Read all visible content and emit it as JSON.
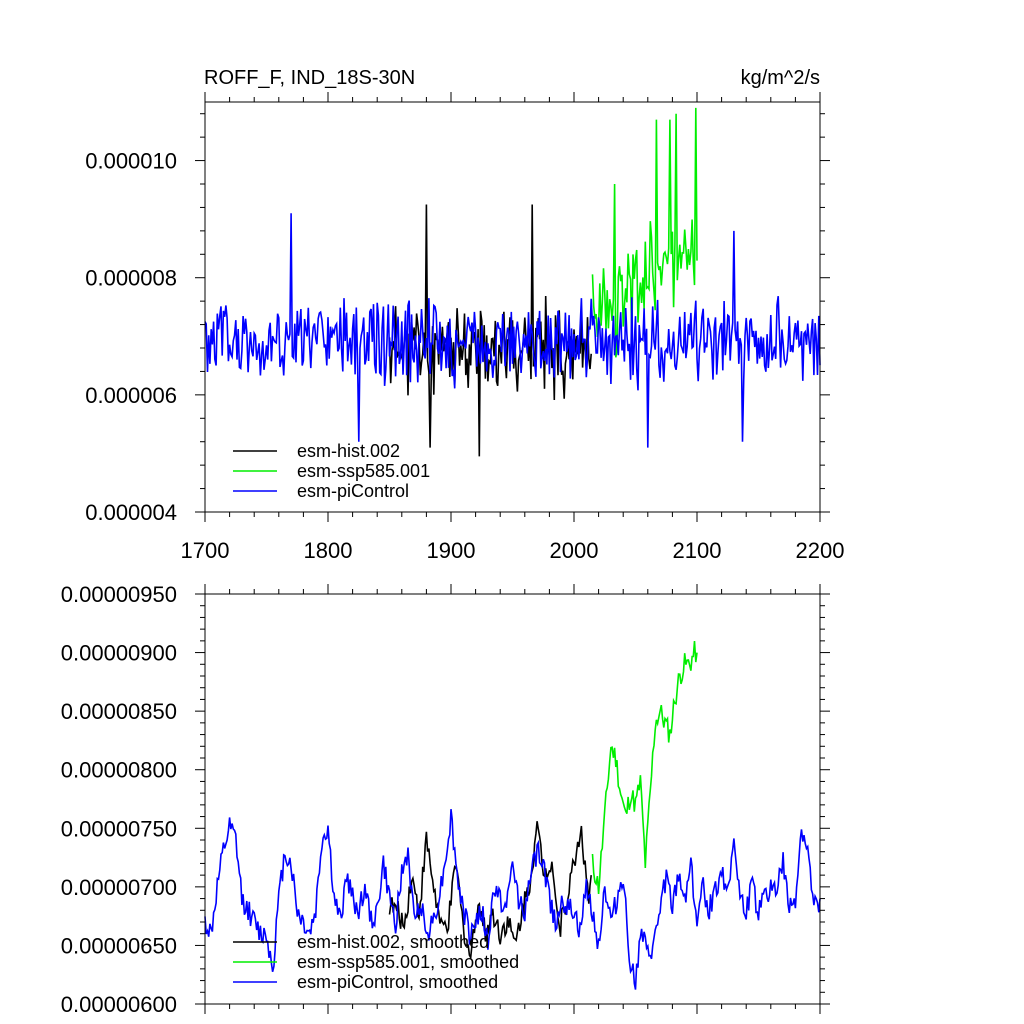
{
  "chart_data": [
    {
      "type": "line",
      "title_left": "ROFF_F, IND_18S-30N",
      "title_right": "kg/m^2/s",
      "xlim": [
        1700,
        2200
      ],
      "ylim": [
        4e-06,
        1.1e-05
      ],
      "x_ticks": [
        "1700",
        "1800",
        "1900",
        "2000",
        "2100",
        "2200"
      ],
      "y_ticks": [
        {
          "v": 4e-06,
          "label": "0.000004"
        },
        {
          "v": 6e-06,
          "label": "0.000006"
        },
        {
          "v": 8e-06,
          "label": "0.000008"
        },
        {
          "v": 1e-05,
          "label": "0.000010"
        }
      ],
      "legend_position": "bottom-left",
      "series": [
        {
          "name": "esm-hist.002",
          "color": "#000000",
          "x_start": 1850,
          "x_end": 2014,
          "mean": 6.8e-06,
          "amp": 9e-07,
          "seed": 11,
          "peaks": [
            [
              1880,
              9.25e-06
            ],
            [
              1966,
              9.25e-06
            ],
            [
              1923,
              4.95e-06
            ],
            [
              1883,
              5.1e-06
            ]
          ]
        },
        {
          "name": "esm-ssp585.001",
          "color": "#00ee00",
          "x_start": 2015,
          "x_end": 2100,
          "mean_start": 7.2e-06,
          "mean_end": 8.7e-06,
          "amp": 1.1e-06,
          "seed": 23,
          "peaks": [
            [
              2033,
              9.6e-06
            ],
            [
              2067,
              1.07e-05
            ],
            [
              2078,
              1.07e-05
            ],
            [
              2083,
              1.08e-05
            ],
            [
              2099,
              1.09e-05
            ]
          ]
        },
        {
          "name": "esm-piControl",
          "color": "#0000ff",
          "x_start": 1700,
          "x_end": 2200,
          "mean": 6.9e-06,
          "amp": 8.5e-07,
          "seed": 5,
          "peaks": [
            [
              1770,
              9.1e-06
            ],
            [
              1825,
              5.2e-06
            ],
            [
              2137,
              5.2e-06
            ],
            [
              2130,
              8.8e-06
            ],
            [
              2060,
              5.1e-06
            ]
          ]
        }
      ]
    },
    {
      "type": "line",
      "xlim": [
        1700,
        2200
      ],
      "ylim": [
        6e-06,
        9.5e-06
      ],
      "y_ticks": [
        {
          "v": 6e-06,
          "label": "0.00000600"
        },
        {
          "v": 6.5e-06,
          "label": "0.00000650"
        },
        {
          "v": 7e-06,
          "label": "0.00000700"
        },
        {
          "v": 7.5e-06,
          "label": "0.00000750"
        },
        {
          "v": 8e-06,
          "label": "0.00000800"
        },
        {
          "v": 8.5e-06,
          "label": "0.00000850"
        },
        {
          "v": 9e-06,
          "label": "0.00000900"
        },
        {
          "v": 9.5e-06,
          "label": "0.00000950"
        }
      ],
      "legend_position": "bottom-left",
      "series": [
        {
          "name": "esm-hist.002, smoothed",
          "color": "#000000",
          "x": [
            1850,
            1856,
            1862,
            1868,
            1874,
            1880,
            1886,
            1892,
            1898,
            1904,
            1910,
            1916,
            1922,
            1928,
            1934,
            1940,
            1946,
            1952,
            1958,
            1964,
            1970,
            1976,
            1982,
            1988,
            1994,
            2000,
            2006,
            2012,
            2014
          ],
          "y": [
            6.85e-06,
            6.8e-06,
            6.67e-06,
            7.1e-06,
            6.78e-06,
            7.4e-06,
            7e-06,
            6.63e-06,
            6.7e-06,
            7.2e-06,
            6.65e-06,
            6.4e-06,
            6.9e-06,
            6.6e-06,
            6.78e-06,
            6.6e-06,
            6.72e-06,
            6.5e-06,
            6.8e-06,
            7.05e-06,
            7.5e-06,
            7.1e-06,
            7.25e-06,
            6.62e-06,
            6.9e-06,
            7.2e-06,
            7.5e-06,
            6.85e-06,
            7.1e-06
          ]
        },
        {
          "name": "esm-ssp585.001, smoothed",
          "color": "#00ee00",
          "x": [
            2015,
            2020,
            2025,
            2030,
            2034,
            2038,
            2042,
            2046,
            2050,
            2054,
            2058,
            2062,
            2066,
            2070,
            2074,
            2078,
            2082,
            2086,
            2090,
            2094,
            2098,
            2100
          ],
          "y": [
            7.2e-06,
            7e-06,
            7.6e-06,
            8.2e-06,
            8.1e-06,
            7.8e-06,
            7.6e-06,
            7.8e-06,
            7.7e-06,
            7.9e-06,
            7.2e-06,
            7.8e-06,
            8.4e-06,
            8.5e-06,
            8.4e-06,
            8.3e-06,
            8.6e-06,
            8.8e-06,
            8.9e-06,
            8.9e-06,
            9e-06,
            9e-06
          ]
        },
        {
          "name": "esm-piControl, smoothed",
          "color": "#0000ff",
          "x": [
            1700,
            1705,
            1710,
            1715,
            1720,
            1725,
            1730,
            1735,
            1740,
            1745,
            1750,
            1755,
            1760,
            1765,
            1770,
            1775,
            1780,
            1785,
            1790,
            1795,
            1800,
            1805,
            1810,
            1815,
            1820,
            1825,
            1830,
            1835,
            1840,
            1845,
            1850,
            1855,
            1860,
            1865,
            1870,
            1875,
            1880,
            1885,
            1890,
            1895,
            1900,
            1905,
            1910,
            1915,
            1920,
            1925,
            1930,
            1935,
            1940,
            1945,
            1950,
            1955,
            1960,
            1965,
            1970,
            1975,
            1980,
            1985,
            1990,
            1995,
            2000,
            2005,
            2010,
            2015,
            2020,
            2025,
            2030,
            2035,
            2040,
            2045,
            2050,
            2055,
            2060,
            2065,
            2070,
            2075,
            2080,
            2085,
            2090,
            2095,
            2100,
            2105,
            2110,
            2115,
            2120,
            2125,
            2130,
            2135,
            2140,
            2145,
            2150,
            2155,
            2160,
            2165,
            2170,
            2175,
            2180,
            2185,
            2190,
            2195,
            2200
          ],
          "y": [
            6.7e-06,
            6.6e-06,
            7e-06,
            7.3e-06,
            7.5e-06,
            7.4e-06,
            6.9e-06,
            6.8e-06,
            6.7e-06,
            6.6e-06,
            6.6e-06,
            6.3e-06,
            6.9e-06,
            7.3e-06,
            7.2e-06,
            6.8e-06,
            6.7e-06,
            6.6e-06,
            6.8e-06,
            7.4e-06,
            7.5e-06,
            6.9e-06,
            6.7e-06,
            7.1e-06,
            6.9e-06,
            6.8e-06,
            7e-06,
            6.7e-06,
            6.8e-06,
            7.2e-06,
            6.9e-06,
            6.7e-06,
            7.1e-06,
            7.3e-06,
            6.7e-06,
            6.9e-06,
            6.6e-06,
            6.7e-06,
            6.9e-06,
            7.2e-06,
            7.6e-06,
            7.1e-06,
            6.8e-06,
            6.6e-06,
            6.7e-06,
            6.8e-06,
            6.5e-06,
            7e-06,
            6.9e-06,
            6.8e-06,
            7.2e-06,
            6.9e-06,
            6.8e-06,
            7.1e-06,
            7.3e-06,
            7.2e-06,
            6.9e-06,
            6.7e-06,
            6.9e-06,
            6.8e-06,
            6.8e-06,
            6.6e-06,
            7e-06,
            6.8e-06,
            6.5e-06,
            7e-06,
            6.7e-06,
            6.9e-06,
            7.1e-06,
            6.4e-06,
            6.2e-06,
            6.6e-06,
            6.4e-06,
            6.5e-06,
            6.8e-06,
            7.1e-06,
            6.8e-06,
            7.1e-06,
            6.9e-06,
            7.2e-06,
            6.7e-06,
            7e-06,
            6.8e-06,
            7e-06,
            7.1e-06,
            7e-06,
            7.4e-06,
            6.9e-06,
            6.8e-06,
            7e-06,
            6.8e-06,
            6.9e-06,
            7e-06,
            7e-06,
            7.2e-06,
            6.8e-06,
            6.9e-06,
            7.5e-06,
            7.3e-06,
            6.8e-06,
            6.9e-06
          ]
        }
      ]
    }
  ]
}
